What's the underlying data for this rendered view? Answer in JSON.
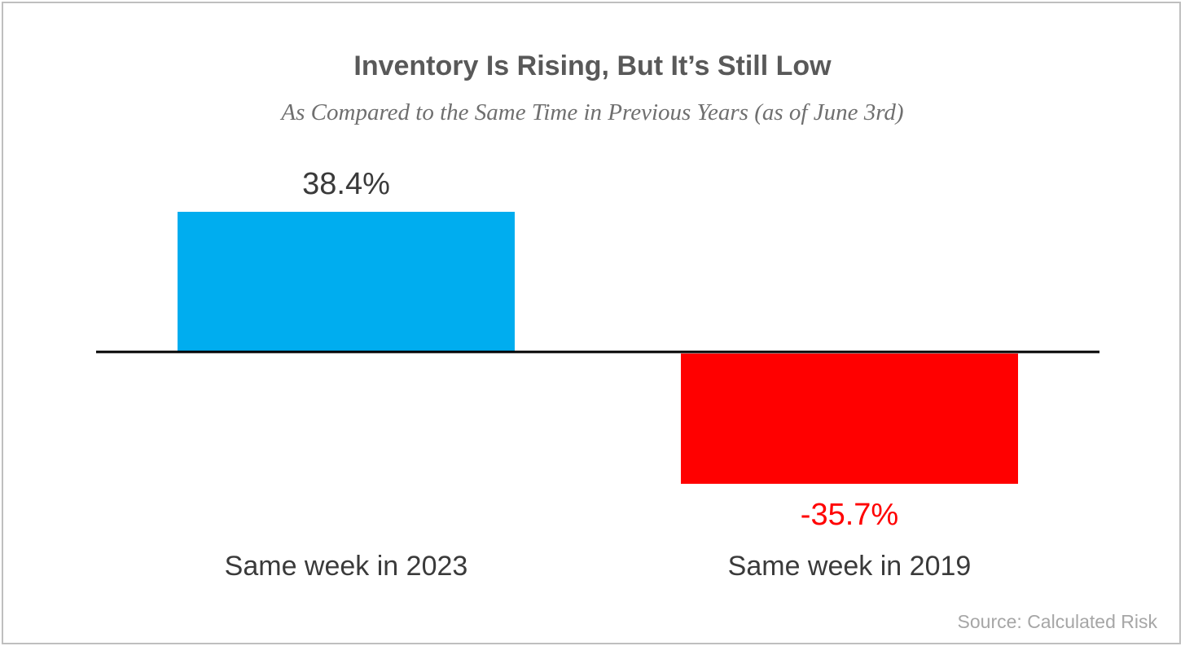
{
  "chart_data": {
    "type": "bar",
    "title": "Inventory Is Rising, But It’s Still Low",
    "subtitle": "As Compared to the Same Time in Previous Years (as of June 3rd)",
    "categories": [
      "Same week in 2023",
      "Same week in 2019"
    ],
    "values": [
      38.4,
      -35.7
    ],
    "value_labels": [
      "38.4%",
      "-35.7%"
    ],
    "colors": [
      "#00adef",
      "#ff0000"
    ],
    "label_colors": [
      "#3a3a3a",
      "#ff0000"
    ],
    "xlabel": "",
    "ylabel": "",
    "ylim": [
      -35.7,
      38.4
    ],
    "grid": false,
    "legend": "none"
  },
  "source": "Source: Calculated Risk"
}
